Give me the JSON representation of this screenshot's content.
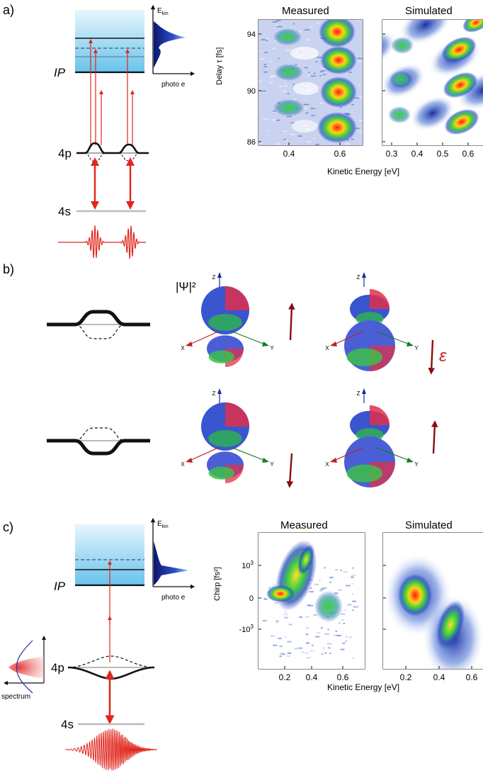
{
  "panel_labels": {
    "a": "a)",
    "b": "b)",
    "c": "c)"
  },
  "a": {
    "ip_label": "IP",
    "level_4p": "4p",
    "level_4s": "4s",
    "ekin_label": "E",
    "ekin_sub": "kin",
    "photoe_label": "photo e",
    "measured_title": "Measured",
    "simulated_title": "Simulated",
    "ylabel": "Delay τ [fs]",
    "xlabel": "Kinetic Energy [eV]",
    "yticks": [
      "94",
      "90",
      "86"
    ],
    "xticks_measured": [
      "0.4",
      "0.6"
    ],
    "xticks_simulated": [
      "0.3",
      "0.4",
      "0.5",
      "0.6"
    ]
  },
  "b": {
    "psi_label": "|Ψ|²",
    "epsilon_label": "ε",
    "axis_z": "Z",
    "axis_x": "X",
    "axis_y": "Y"
  },
  "c": {
    "ip_label": "IP",
    "level_4p": "4p",
    "level_4s": "4s",
    "ekin_label": "E",
    "ekin_sub": "kin",
    "photoe_label": "photo e",
    "spectrum_label": "spectrum",
    "measured_title": "Measured",
    "simulated_title": "Simulated",
    "ylabel": "Chirp [fs²]",
    "xlabel": "Kinetic Energy [eV]",
    "yticks": [
      "10³",
      "0",
      "-10³"
    ],
    "xticks_measured": [
      "0.2",
      "0.4",
      "0.6"
    ],
    "xticks_simulated": [
      "0.2",
      "0.4",
      "0.6"
    ]
  },
  "colors": {
    "laser_red": "#e0261d",
    "dark_arrow": "#8b0d12",
    "continuum_blue": "#8fd0f0",
    "map_blue": "#1a2fa0"
  }
}
